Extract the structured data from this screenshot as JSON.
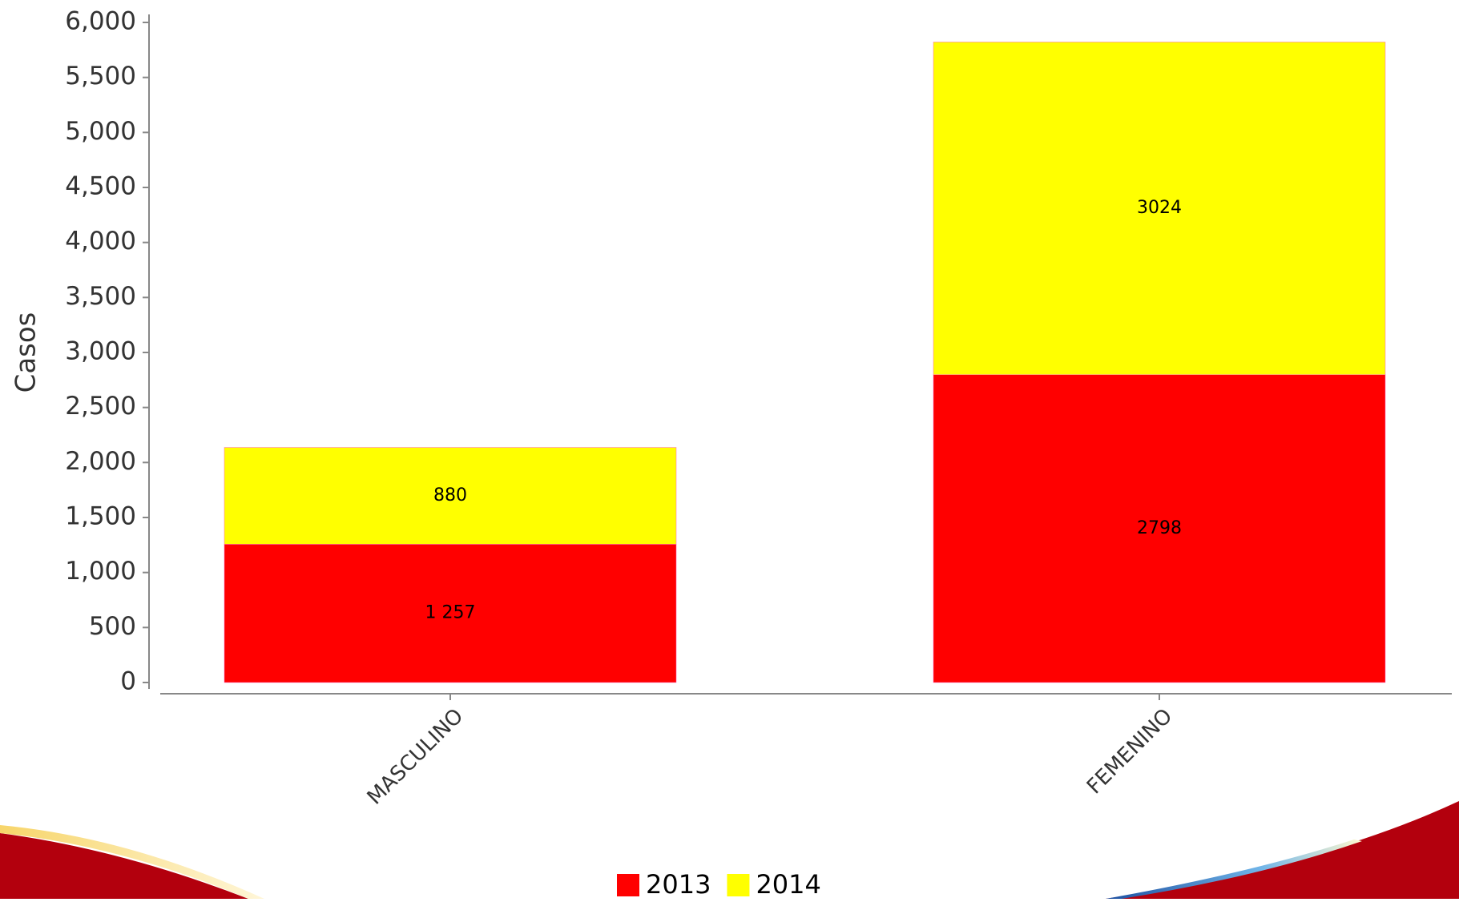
{
  "chart_data": {
    "type": "stacked_bar",
    "y_label": "Casos",
    "categories": [
      "MASCULINO",
      "FEMENINO"
    ],
    "series": [
      {
        "name": "2013",
        "color": "#ff0000",
        "values": [
          1257,
          2798
        ],
        "value_labels": [
          "1 257",
          "2798"
        ]
      },
      {
        "name": "2014",
        "color": "#ffff00",
        "values": [
          880,
          3024
        ]
      }
    ],
    "ylim": [
      0,
      6000
    ],
    "yticks": [
      0,
      500,
      {
        "value": 1000,
        "label": "1,000"
      },
      {
        "value": 1500,
        "label": "1,500"
      },
      {
        "value": 2000,
        "label": "2,000"
      },
      {
        "value": 2500,
        "label": "2,500"
      },
      {
        "value": 3000,
        "label": "3,000"
      },
      {
        "value": 3500,
        "label": "3,500"
      },
      {
        "value": 4000,
        "label": "4,000"
      },
      {
        "value": 4500,
        "label": "4,500"
      },
      {
        "value": 5000,
        "label": "5,000"
      },
      {
        "value": 5500,
        "label": "5,500"
      },
      {
        "value": 6000,
        "label": "6,000"
      }
    ],
    "legend": "bottom"
  }
}
